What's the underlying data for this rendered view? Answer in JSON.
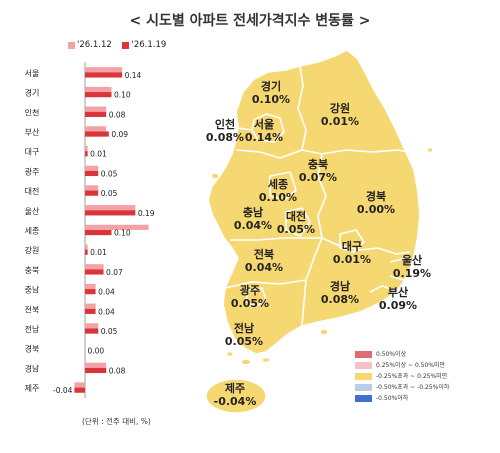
{
  "title": "< 시도별 아파트 전세가격지수 변동률 >",
  "unit_note": "(단위 : 전주 대비, %)",
  "colors": {
    "prev": "#f3a3a8",
    "curr": "#d9353b",
    "map_fill": "#f6d873",
    "map_stroke": "#ffffff"
  },
  "chart_data": {
    "type": "bar",
    "orientation": "horizontal",
    "categories": [
      "서울",
      "경기",
      "인천",
      "부산",
      "대구",
      "광주",
      "대전",
      "울산",
      "세종",
      "강원",
      "충북",
      "충남",
      "전북",
      "전남",
      "경북",
      "경남",
      "제주"
    ],
    "series": [
      {
        "name": "'26.1.12",
        "values": [
          0.14,
          0.1,
          0.08,
          0.08,
          0.01,
          0.05,
          0.05,
          0.19,
          0.24,
          0.01,
          0.07,
          0.04,
          0.04,
          0.05,
          0.0,
          0.08,
          -0.04
        ]
      },
      {
        "name": "'26.1.19",
        "values": [
          0.14,
          0.1,
          0.08,
          0.09,
          0.01,
          0.05,
          0.05,
          0.19,
          0.1,
          0.01,
          0.07,
          0.04,
          0.04,
          0.05,
          0.0,
          0.08,
          -0.04
        ]
      }
    ],
    "data_labels": [
      "0.14",
      "0.10",
      "0.08",
      "0.09",
      "0.01",
      "0.05",
      "0.05",
      "0.19",
      "0.10",
      "0.01",
      "0.07",
      "0.04",
      "0.04",
      "0.05",
      "0.00",
      "0.08",
      "-0.04"
    ],
    "axis_range": [
      -0.05,
      0.25
    ],
    "legend_position": "top",
    "grid": false
  },
  "map": {
    "regions": [
      {
        "name": "경기",
        "value": "0.10%"
      },
      {
        "name": "강원",
        "value": "0.01%"
      },
      {
        "name": "인천",
        "value": "0.08%"
      },
      {
        "name": "서울",
        "value": "0.14%"
      },
      {
        "name": "충북",
        "value": "0.07%"
      },
      {
        "name": "세종",
        "value": "0.10%"
      },
      {
        "name": "경북",
        "value": "0.00%"
      },
      {
        "name": "충남",
        "value": "0.04%"
      },
      {
        "name": "대전",
        "value": "0.05%"
      },
      {
        "name": "대구",
        "value": "0.01%"
      },
      {
        "name": "울산",
        "value": "0.19%"
      },
      {
        "name": "전북",
        "value": "0.04%"
      },
      {
        "name": "경남",
        "value": "0.08%"
      },
      {
        "name": "부산",
        "value": "0.09%"
      },
      {
        "name": "광주",
        "value": "0.05%"
      },
      {
        "name": "전남",
        "value": "0.05%"
      },
      {
        "name": "제주",
        "value": "-0.04%"
      }
    ],
    "legend": [
      {
        "label": "0.50%이상",
        "color": "#e06c73"
      },
      {
        "label": "0.25%이상 ~ 0.50%미만",
        "color": "#f5c1c4"
      },
      {
        "label": "-0.25%초과 ~ 0.25%미만",
        "color": "#f6d873"
      },
      {
        "label": "-0.50%초과 ~ -0.25%이하",
        "color": "#b9cde9"
      },
      {
        "label": "-0.50%이하",
        "color": "#3f6fcf"
      }
    ]
  }
}
